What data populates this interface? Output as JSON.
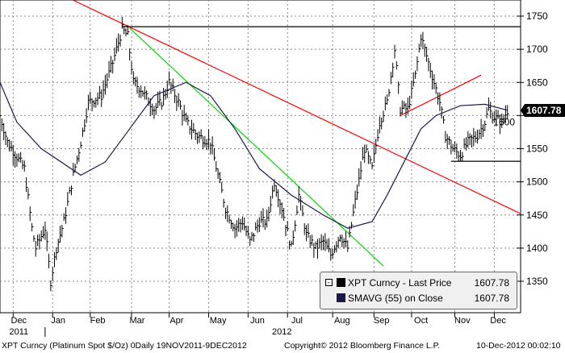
{
  "chart_data": {
    "type": "line",
    "title": "XPT Curncy (Platinum Spot  $/Oz) 0Daily 19NOV2011-9DEC2012",
    "xlim": [
      0,
      277
    ],
    "ylim": [
      1310,
      1775
    ],
    "y_ticks": [
      1350,
      1400,
      1450,
      1500,
      1550,
      1600,
      1650,
      1700,
      1750
    ],
    "x_months": [
      {
        "label": "Dec",
        "day": 10
      },
      {
        "label": "Jan",
        "day": 31
      },
      {
        "label": "Feb",
        "day": 52
      },
      {
        "label": "Mar",
        "day": 73
      },
      {
        "label": "Apr",
        "day": 94
      },
      {
        "label": "May",
        "day": 116
      },
      {
        "label": "Jun",
        "day": 137
      },
      {
        "label": "Jul",
        "day": 158
      },
      {
        "label": "Aug",
        "day": 182
      },
      {
        "label": "Sep",
        "day": 203
      },
      {
        "label": "Oct",
        "day": 224
      },
      {
        "label": "Nov",
        "day": 246
      },
      {
        "label": "Dec",
        "day": 265
      }
    ],
    "month_boundaries": [
      7,
      28,
      48,
      70,
      90,
      111,
      132,
      153,
      177,
      199,
      219,
      242,
      263
    ],
    "year_labels": [
      {
        "label": "2011",
        "day": 10
      },
      {
        "label": "2012",
        "day": 150
      }
    ],
    "grid": true,
    "legend_placement": "bottom-right",
    "series": [
      {
        "name": "XPT Curncy - Last Price",
        "value_label": "1607.78",
        "color": "#000000",
        "style": "bar",
        "points": [
          [
            0,
            1600
          ],
          [
            4,
            1560
          ],
          [
            13,
            1520
          ],
          [
            17,
            1430
          ],
          [
            19,
            1400
          ],
          [
            24,
            1430
          ],
          [
            27,
            1350
          ],
          [
            30,
            1400
          ],
          [
            34,
            1440
          ],
          [
            39,
            1510
          ],
          [
            43,
            1560
          ],
          [
            47,
            1620
          ],
          [
            54,
            1630
          ],
          [
            60,
            1680
          ],
          [
            65,
            1730
          ],
          [
            68,
            1720
          ],
          [
            71,
            1650
          ],
          [
            75,
            1640
          ],
          [
            82,
            1610
          ],
          [
            86,
            1620
          ],
          [
            90,
            1650
          ],
          [
            95,
            1620
          ],
          [
            99,
            1590
          ],
          [
            105,
            1570
          ],
          [
            112,
            1560
          ],
          [
            116,
            1510
          ],
          [
            120,
            1460
          ],
          [
            125,
            1430
          ],
          [
            129,
            1440
          ],
          [
            133,
            1410
          ],
          [
            138,
            1440
          ],
          [
            142,
            1440
          ],
          [
            146,
            1500
          ],
          [
            150,
            1460
          ],
          [
            155,
            1400
          ],
          [
            159,
            1480
          ],
          [
            163,
            1420
          ],
          [
            168,
            1400
          ],
          [
            172,
            1410
          ],
          [
            176,
            1390
          ],
          [
            181,
            1420
          ],
          [
            185,
            1400
          ],
          [
            189,
            1470
          ],
          [
            194,
            1550
          ],
          [
            198,
            1520
          ],
          [
            202,
            1590
          ],
          [
            206,
            1620
          ],
          [
            210,
            1700
          ],
          [
            213,
            1610
          ],
          [
            217,
            1610
          ],
          [
            221,
            1660
          ],
          [
            224,
            1720
          ],
          [
            228,
            1680
          ],
          [
            232,
            1640
          ],
          [
            234,
            1620
          ],
          [
            237,
            1570
          ],
          [
            241,
            1550
          ],
          [
            245,
            1540
          ],
          [
            249,
            1560
          ],
          [
            254,
            1570
          ],
          [
            258,
            1590
          ],
          [
            260,
            1610
          ],
          [
            262,
            1600
          ],
          [
            267,
            1590
          ],
          [
            270,
            1607.78
          ]
        ]
      },
      {
        "name": "SMAVG (55) on Close",
        "value_label": "1607.78",
        "color": "#1a1a4a",
        "style": "line",
        "points": [
          [
            0,
            1650
          ],
          [
            9,
            1590
          ],
          [
            22,
            1550
          ],
          [
            43,
            1510
          ],
          [
            56,
            1530
          ],
          [
            69,
            1580
          ],
          [
            82,
            1630
          ],
          [
            99,
            1650
          ],
          [
            112,
            1630
          ],
          [
            125,
            1580
          ],
          [
            138,
            1520
          ],
          [
            155,
            1480
          ],
          [
            172,
            1450
          ],
          [
            185,
            1430
          ],
          [
            198,
            1440
          ],
          [
            206,
            1480
          ],
          [
            215,
            1530
          ],
          [
            224,
            1580
          ],
          [
            232,
            1600
          ],
          [
            245,
            1615
          ],
          [
            258,
            1617
          ],
          [
            270,
            1608
          ]
        ]
      }
    ],
    "trendlines": [
      {
        "color": "#ff0000",
        "from": [
          39,
          1774
        ],
        "to": [
          277,
          1452
        ]
      },
      {
        "color": "#00dd00",
        "from": [
          69,
          1732
        ],
        "to": [
          204,
          1373
        ]
      },
      {
        "color": "#ff0000",
        "from": [
          213,
          1600
        ],
        "to": [
          256,
          1661
        ]
      },
      {
        "color": "#000000",
        "from": [
          65,
          1734
        ],
        "to": [
          277,
          1734
        ]
      },
      {
        "color": "#000000",
        "from": [
          240,
          1531
        ],
        "to": [
          277,
          1531
        ]
      }
    ],
    "last_price_tag": "1607.78"
  },
  "legend": {
    "item1": "XPT Curncy - Last Price",
    "item1_value": "1607.78",
    "item2": "SMAVG (55) on Close",
    "item2_value": "1607.78"
  },
  "footer": {
    "title": "XPT Curncy (Platinum Spot  $/Oz) 0Daily 19NOV2011-9DEC2012",
    "copyright": "Copyright© 2012 Bloomberg Finance L.P.",
    "timestamp": "10-Dec-2012 00:02:10"
  }
}
